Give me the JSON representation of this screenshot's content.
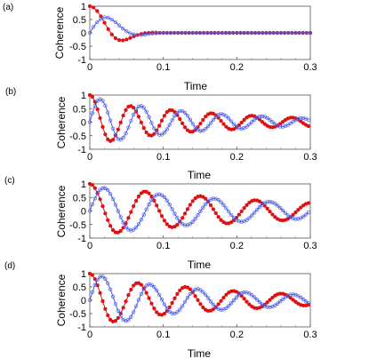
{
  "chart_data": [
    {
      "type": "line",
      "panel_label": "(a)",
      "xlabel": "Time",
      "ylabel": "Coherence",
      "xlim": [
        0,
        0.3
      ],
      "ylim": [
        -1,
        1
      ],
      "xticks": [
        "0",
        "0.1",
        "0.2",
        "0.3"
      ],
      "yticks": [
        "1",
        "0.5",
        "0",
        "-0.5",
        "-1"
      ],
      "grid": false,
      "x": [
        0,
        0.005,
        0.01,
        0.015,
        0.02,
        0.025,
        0.03,
        0.035,
        0.04,
        0.045,
        0.05,
        0.055,
        0.06,
        0.065,
        0.07,
        0.075,
        0.08,
        0.085,
        0.09,
        0.095,
        0.1,
        0.105,
        0.11,
        0.115,
        0.12,
        0.3
      ],
      "series": [
        {
          "color": "#e01010",
          "marker": "filled-circle",
          "values": [
            1.0,
            0.95,
            0.82,
            0.62,
            0.38,
            0.14,
            -0.06,
            -0.2,
            -0.27,
            -0.28,
            -0.25,
            -0.19,
            -0.13,
            -0.08,
            -0.04,
            -0.01,
            0.0,
            0.01,
            0.01,
            0.0,
            0.0,
            0.0,
            0.0,
            0.0,
            0.0,
            0.0
          ]
        },
        {
          "color": "#4a5ce8",
          "marker": "open-circle",
          "values": [
            0.0,
            0.22,
            0.4,
            0.52,
            0.58,
            0.57,
            0.5,
            0.4,
            0.28,
            0.16,
            0.06,
            -0.02,
            -0.06,
            -0.08,
            -0.08,
            -0.06,
            -0.04,
            -0.02,
            -0.01,
            0.0,
            0.0,
            0.0,
            0.0,
            0.0,
            0.0,
            0.0
          ]
        }
      ]
    },
    {
      "type": "line",
      "panel_label": "(b)",
      "xlabel": "Time",
      "ylabel": "Coherence",
      "xlim": [
        0,
        0.3
      ],
      "ylim": [
        -1,
        1
      ],
      "xticks": [
        "0",
        "0.1",
        "0.2",
        "0.3"
      ],
      "yticks": [
        "1",
        "0.5",
        "0",
        "-0.5",
        "-1"
      ],
      "grid": false,
      "damped_oscillation": {
        "period": 0.055,
        "decay_time": 0.16,
        "red_offset": 0.0,
        "blue_offset": 0.0,
        "red_amplitude": 1.0,
        "blue_amplitude": 1.0,
        "red_phase": "cosine",
        "blue_phase": "sine"
      },
      "series": [
        {
          "color": "#e01010",
          "marker": "filled-circle",
          "peaks": [
            [
              0,
              1.0
            ],
            [
              0.028,
              -0.7
            ],
            [
              0.055,
              0.6
            ],
            [
              0.083,
              -0.5
            ],
            [
              0.11,
              0.45
            ],
            [
              0.138,
              -0.36
            ],
            [
              0.165,
              0.33
            ],
            [
              0.193,
              -0.27
            ],
            [
              0.22,
              0.24
            ],
            [
              0.248,
              -0.19
            ],
            [
              0.275,
              0.17
            ]
          ]
        },
        {
          "color": "#4a5ce8",
          "marker": "open-circle",
          "peaks": [
            [
              0.014,
              0.85
            ],
            [
              0.041,
              -0.65
            ],
            [
              0.069,
              0.6
            ],
            [
              0.096,
              -0.47
            ],
            [
              0.124,
              0.42
            ],
            [
              0.151,
              -0.33
            ],
            [
              0.179,
              0.3
            ],
            [
              0.206,
              -0.24
            ],
            [
              0.234,
              0.22
            ],
            [
              0.261,
              -0.17
            ],
            [
              0.289,
              0.15
            ]
          ]
        }
      ]
    },
    {
      "type": "line",
      "panel_label": "(c)",
      "xlabel": "Time",
      "ylabel": "Coherence",
      "xlim": [
        0,
        0.3
      ],
      "ylim": [
        -1,
        1
      ],
      "xticks": [
        "0",
        "0.1",
        "0.2",
        "0.3"
      ],
      "yticks": [
        "1",
        "0.5",
        "0",
        "-0.5",
        "-1"
      ],
      "grid": false,
      "damped_oscillation": {
        "period": 0.075,
        "decay_time": 0.32
      },
      "series": [
        {
          "color": "#e01010",
          "marker": "filled-circle",
          "peaks": [
            [
              0,
              1.0
            ],
            [
              0.037,
              -0.8
            ],
            [
              0.075,
              0.72
            ],
            [
              0.112,
              -0.6
            ],
            [
              0.15,
              0.55
            ],
            [
              0.187,
              -0.46
            ],
            [
              0.225,
              0.4
            ],
            [
              0.262,
              -0.35
            ],
            [
              0.3,
              0.3
            ]
          ]
        },
        {
          "color": "#4a5ce8",
          "marker": "open-circle",
          "peaks": [
            [
              0.019,
              0.85
            ],
            [
              0.056,
              -0.72
            ],
            [
              0.094,
              0.62
            ],
            [
              0.131,
              -0.53
            ],
            [
              0.169,
              0.46
            ],
            [
              0.206,
              -0.4
            ],
            [
              0.244,
              0.34
            ],
            [
              0.281,
              -0.3
            ]
          ]
        }
      ]
    },
    {
      "type": "line",
      "panel_label": "(d)",
      "xlabel": "Time",
      "ylabel": "Coherence",
      "xlim": [
        0,
        0.3
      ],
      "ylim": [
        -1,
        1
      ],
      "xticks": [
        "0",
        "0.1",
        "0.2",
        "0.3"
      ],
      "yticks": [
        "1",
        "0.5",
        "0",
        "-0.5",
        "-1"
      ],
      "grid": false,
      "damped_oscillation": {
        "period": 0.065,
        "decay_time": 0.22
      },
      "series": [
        {
          "color": "#e01010",
          "marker": "filled-circle",
          "peaks": [
            [
              0,
              1.0
            ],
            [
              0.032,
              -0.8
            ],
            [
              0.065,
              0.65
            ],
            [
              0.097,
              -0.55
            ],
            [
              0.13,
              0.5
            ],
            [
              0.162,
              -0.4
            ],
            [
              0.195,
              0.35
            ],
            [
              0.227,
              -0.3
            ],
            [
              0.26,
              0.25
            ],
            [
              0.292,
              -0.2
            ]
          ]
        },
        {
          "color": "#4a5ce8",
          "marker": "open-circle",
          "peaks": [
            [
              0.016,
              0.9
            ],
            [
              0.049,
              -0.78
            ],
            [
              0.081,
              0.6
            ],
            [
              0.114,
              -0.5
            ],
            [
              0.146,
              0.42
            ],
            [
              0.179,
              -0.36
            ],
            [
              0.211,
              0.3
            ],
            [
              0.244,
              -0.26
            ],
            [
              0.276,
              0.22
            ]
          ]
        }
      ]
    }
  ]
}
